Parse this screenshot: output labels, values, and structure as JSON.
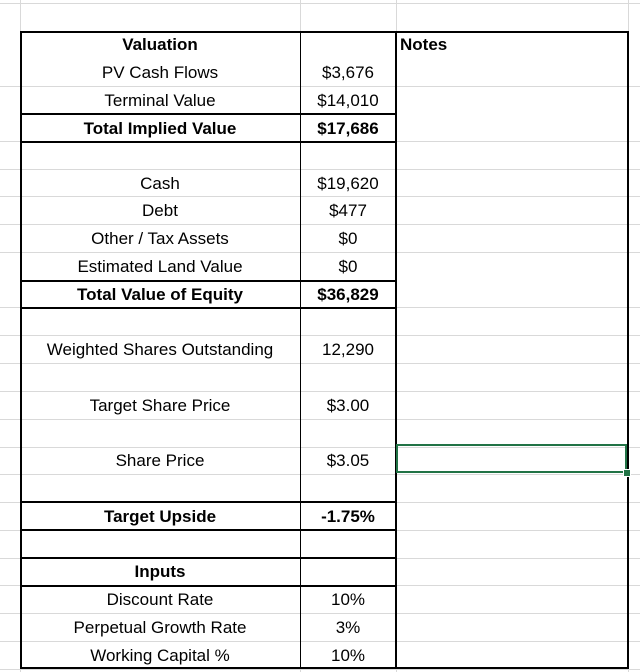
{
  "valuation": {
    "header": "Valuation",
    "notes_header": "Notes",
    "pv_cash_flows": {
      "label": "PV Cash Flows",
      "value": "$3,676"
    },
    "terminal_value": {
      "label": "Terminal Value",
      "value": "$14,010"
    },
    "total_implied_value": {
      "label": "Total Implied Value",
      "value": "$17,686"
    }
  },
  "balance": {
    "cash": {
      "label": "Cash",
      "value": "$19,620"
    },
    "debt": {
      "label": "Debt",
      "value": "$477"
    },
    "other_tax_assets": {
      "label": "Other / Tax Assets",
      "value": "$0"
    },
    "estimated_land_value": {
      "label": "Estimated Land Value",
      "value": "$0"
    },
    "total_value_of_equity": {
      "label": "Total Value of Equity",
      "value": "$36,829"
    }
  },
  "shares": {
    "weighted_shares_outstanding": {
      "label": "Weighted Shares Outstanding",
      "value": "12,290"
    },
    "target_share_price": {
      "label": "Target Share Price",
      "value": "$3.00"
    },
    "share_price": {
      "label": "Share Price",
      "value": "$3.05"
    },
    "target_upside": {
      "label": "Target Upside",
      "value": "-1.75%"
    }
  },
  "inputs": {
    "header": "Inputs",
    "discount_rate": {
      "label": "Discount Rate",
      "value": "10%"
    },
    "perpetual_growth_rate": {
      "label": "Perpetual Growth Rate",
      "value": "3%"
    },
    "working_capital": {
      "label": "Working Capital %",
      "value": "10%"
    }
  },
  "colors": {
    "gridline": "#d9d9d9",
    "selection": "#217346",
    "border": "#000000"
  }
}
